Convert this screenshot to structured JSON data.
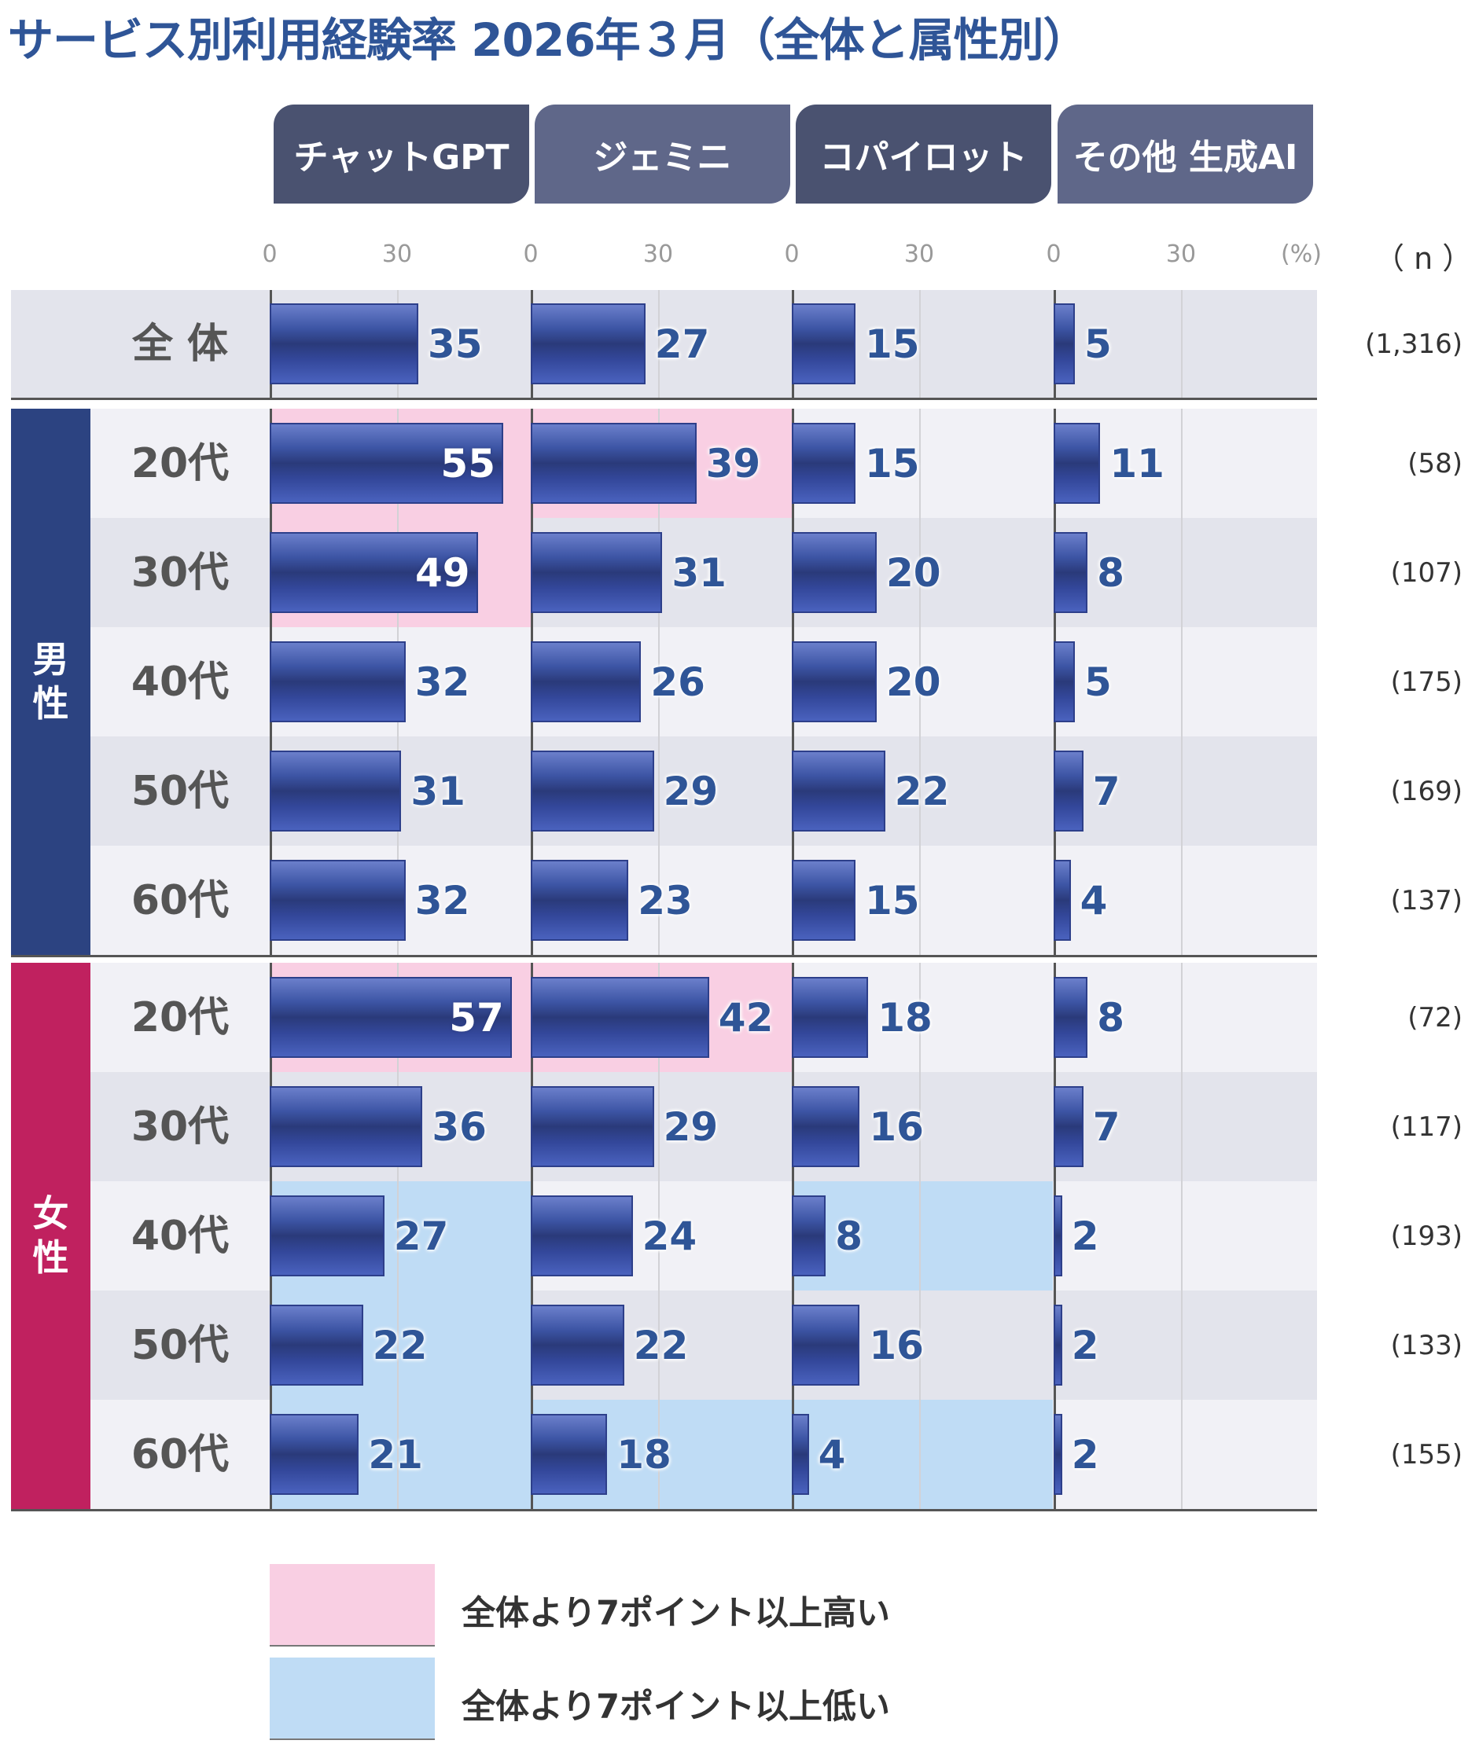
{
  "chart_data": {
    "type": "bar",
    "title": "サービス別利用経験率 2026年３月（全体と属性別）",
    "unit_label": "(%)",
    "n_header": "（ n ）",
    "services": [
      "チャットGPT",
      "ジェミニ",
      "コパイロット",
      "その他 生成AI"
    ],
    "tick_labels": [
      "0",
      "30"
    ],
    "xlim": [
      0,
      61
    ],
    "colors": {
      "tab_dark": "#4a5270",
      "tab_light": "#5f6789",
      "male": "#2c4381",
      "female": "#c0215f",
      "high": "#f9cfe3",
      "low": "#bfdcf5",
      "label": "#2f5597"
    },
    "groups": [
      {
        "gender": null,
        "rows": [
          {
            "label": "全 体",
            "n": "(1,316)",
            "values": [
              35,
              27,
              15,
              5
            ],
            "highlight": [
              null,
              null,
              null,
              null
            ]
          }
        ]
      },
      {
        "gender": "男\n性",
        "rows": [
          {
            "label": "20代",
            "n": "(58)",
            "values": [
              55,
              39,
              15,
              11
            ],
            "highlight": [
              "high",
              "high",
              null,
              null
            ]
          },
          {
            "label": "30代",
            "n": "(107)",
            "values": [
              49,
              31,
              20,
              8
            ],
            "highlight": [
              "high",
              null,
              null,
              null
            ]
          },
          {
            "label": "40代",
            "n": "(175)",
            "values": [
              32,
              26,
              20,
              5
            ],
            "highlight": [
              null,
              null,
              null,
              null
            ]
          },
          {
            "label": "50代",
            "n": "(169)",
            "values": [
              31,
              29,
              22,
              7
            ],
            "highlight": [
              null,
              null,
              null,
              null
            ]
          },
          {
            "label": "60代",
            "n": "(137)",
            "values": [
              32,
              23,
              15,
              4
            ],
            "highlight": [
              null,
              null,
              null,
              null
            ]
          }
        ]
      },
      {
        "gender": "女\n性",
        "rows": [
          {
            "label": "20代",
            "n": "(72)",
            "values": [
              57,
              42,
              18,
              8
            ],
            "highlight": [
              "high",
              "high",
              null,
              null
            ]
          },
          {
            "label": "30代",
            "n": "(117)",
            "values": [
              36,
              29,
              16,
              7
            ],
            "highlight": [
              null,
              null,
              null,
              null
            ]
          },
          {
            "label": "40代",
            "n": "(193)",
            "values": [
              27,
              24,
              8,
              2
            ],
            "highlight": [
              "low",
              null,
              "low",
              null
            ]
          },
          {
            "label": "50代",
            "n": "(133)",
            "values": [
              22,
              22,
              16,
              2
            ],
            "highlight": [
              "low",
              null,
              null,
              null
            ]
          },
          {
            "label": "60代",
            "n": "(155)",
            "values": [
              21,
              18,
              4,
              2
            ],
            "highlight": [
              "low",
              "low",
              "low",
              null
            ]
          }
        ]
      }
    ],
    "legend": [
      {
        "key": "high",
        "label": "全体より7ポイント以上高い"
      },
      {
        "key": "low",
        "label": "全体より7ポイント以上低い"
      }
    ]
  }
}
